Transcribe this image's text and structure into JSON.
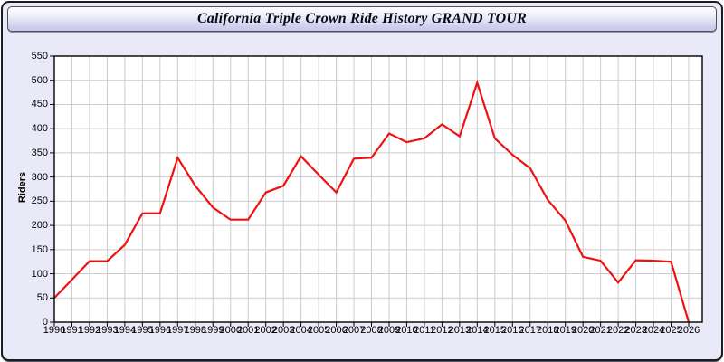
{
  "window": {
    "title": "California Triple Crown Ride History GRAND TOUR"
  },
  "colors": {
    "panel_background": "#e9e9f8",
    "plot_background": "#ffffff",
    "grid": "#cccccc",
    "axis": "#000000",
    "line": "#ee1111",
    "text": "#000000"
  },
  "chart_data": {
    "type": "line",
    "title": "California Triple Crown Ride History GRAND TOUR",
    "xlabel": "",
    "ylabel": "Riders",
    "ylim": [
      0,
      550
    ],
    "ytick_step": 50,
    "yticks": [
      0,
      50,
      100,
      150,
      200,
      250,
      300,
      350,
      400,
      450,
      500,
      550
    ],
    "grid": true,
    "legend_position": "none",
    "x": [
      1990,
      1991,
      1992,
      1993,
      1994,
      1995,
      1996,
      1997,
      1998,
      1999,
      2000,
      2001,
      2002,
      2003,
      2004,
      2005,
      2006,
      2007,
      2008,
      2009,
      2010,
      2011,
      2012,
      2013,
      2014,
      2015,
      2016,
      2017,
      2018,
      2019,
      2020,
      2021,
      2022,
      2023,
      2024,
      2025,
      2026
    ],
    "series": [
      {
        "name": "Riders",
        "color": "#ee1111",
        "values": [
          50,
          88,
          126,
          126,
          160,
          225,
          225,
          340,
          282,
          237,
          212,
          212,
          268,
          282,
          343,
          305,
          268,
          338,
          340,
          390,
          372,
          380,
          409,
          384,
          495,
          380,
          346,
          318,
          253,
          210,
          135,
          127,
          82,
          128,
          127,
          125,
          0
        ]
      }
    ]
  }
}
